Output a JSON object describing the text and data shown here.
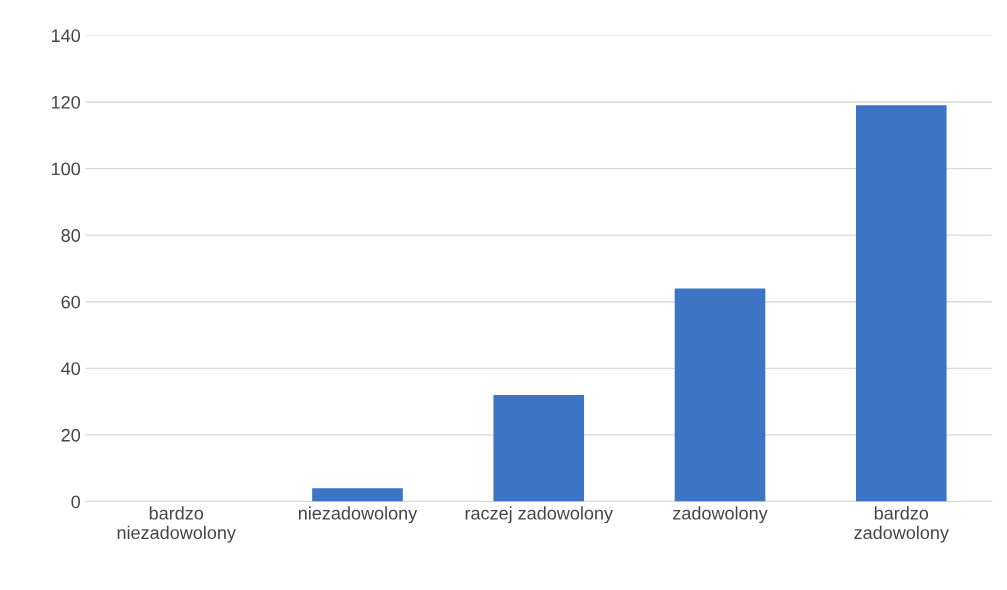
{
  "chart_data": {
    "type": "bar",
    "categories": [
      "bardzo\nniezadowolony",
      "niezadowolony",
      "raczej zadowolony",
      "zadowolony",
      "bardzo\nzadowolony"
    ],
    "values": [
      0,
      4,
      32,
      64,
      119
    ],
    "color": "#3d74c4",
    "ylim": [
      0,
      140
    ],
    "yticks": [
      0,
      20,
      40,
      60,
      80,
      100,
      120,
      140
    ],
    "grid": "y",
    "legend": false
  }
}
